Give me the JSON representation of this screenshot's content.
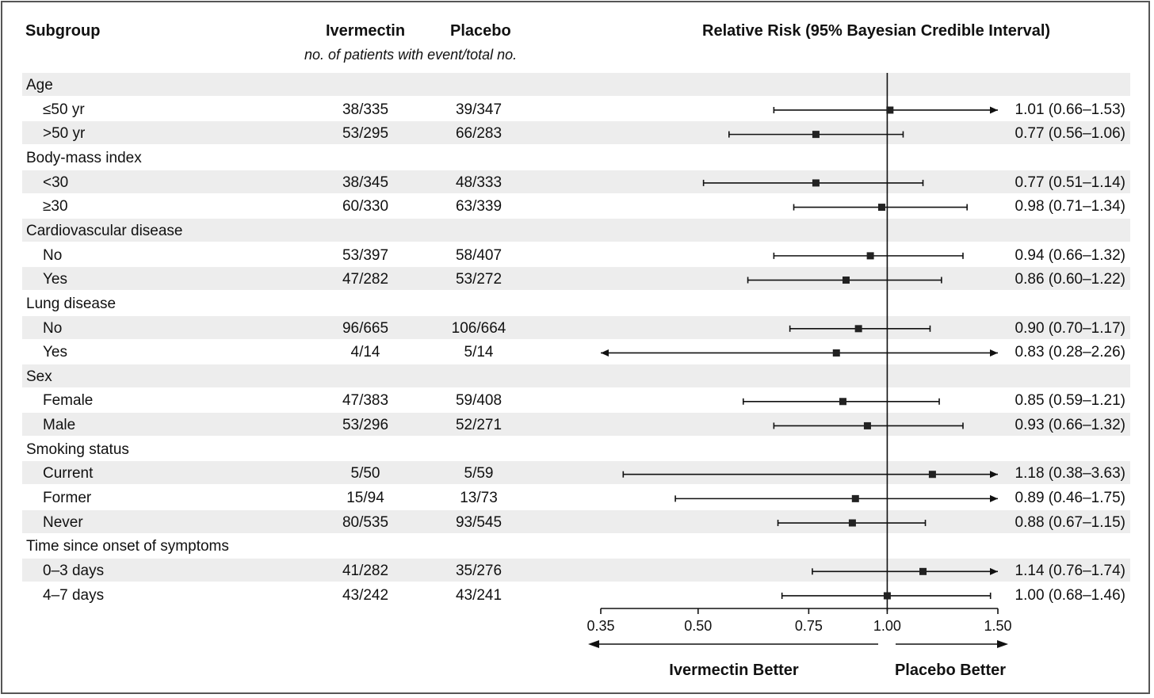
{
  "headers": {
    "subgroup": "Subgroup",
    "ivermectin": "Ivermectin",
    "placebo": "Placebo",
    "subheader": "no. of patients with event/total no.",
    "relative_risk": "Relative Risk (95% Bayesian Credible Interval)"
  },
  "chart_data": {
    "type": "forest",
    "xscale": "log",
    "xlim": [
      0.35,
      1.5
    ],
    "reference_line": 1.0,
    "xticks": [
      {
        "value": 0.35,
        "label": "0.35"
      },
      {
        "value": 0.5,
        "label": "0.50"
      },
      {
        "value": 0.75,
        "label": "0.75"
      },
      {
        "value": 1.0,
        "label": "1.00"
      },
      {
        "value": 1.5,
        "label": "1.50"
      }
    ],
    "direction_labels": {
      "left": "Ivermectin Better",
      "right": "Placebo Better"
    },
    "rows": [
      {
        "kind": "group",
        "label": "Age"
      },
      {
        "kind": "item",
        "label": "≤50 yr",
        "ivermectin": "38/335",
        "placebo": "39/347",
        "rr": 1.01,
        "lo": 0.66,
        "hi": 1.53,
        "rr_text": "1.01 (0.66–1.53)"
      },
      {
        "kind": "item",
        "label": ">50 yr",
        "ivermectin": "53/295",
        "placebo": "66/283",
        "rr": 0.77,
        "lo": 0.56,
        "hi": 1.06,
        "rr_text": "0.77 (0.56–1.06)"
      },
      {
        "kind": "group",
        "label": "Body-mass index"
      },
      {
        "kind": "item",
        "label": "<30",
        "ivermectin": "38/345",
        "placebo": "48/333",
        "rr": 0.77,
        "lo": 0.51,
        "hi": 1.14,
        "rr_text": "0.77 (0.51–1.14)"
      },
      {
        "kind": "item",
        "label": "≥30",
        "ivermectin": "60/330",
        "placebo": "63/339",
        "rr": 0.98,
        "lo": 0.71,
        "hi": 1.34,
        "rr_text": "0.98 (0.71–1.34)"
      },
      {
        "kind": "group",
        "label": "Cardiovascular disease"
      },
      {
        "kind": "item",
        "label": "No",
        "ivermectin": "53/397",
        "placebo": "58/407",
        "rr": 0.94,
        "lo": 0.66,
        "hi": 1.32,
        "rr_text": "0.94 (0.66–1.32)"
      },
      {
        "kind": "item",
        "label": "Yes",
        "ivermectin": "47/282",
        "placebo": "53/272",
        "rr": 0.86,
        "lo": 0.6,
        "hi": 1.22,
        "rr_text": "0.86 (0.60–1.22)"
      },
      {
        "kind": "group",
        "label": "Lung disease"
      },
      {
        "kind": "item",
        "label": "No",
        "ivermectin": "96/665",
        "placebo": "106/664",
        "rr": 0.9,
        "lo": 0.7,
        "hi": 1.17,
        "rr_text": "0.90 (0.70–1.17)"
      },
      {
        "kind": "item",
        "label": "Yes",
        "ivermectin": "4/14",
        "placebo": "5/14",
        "rr": 0.83,
        "lo": 0.28,
        "hi": 2.26,
        "rr_text": "0.83 (0.28–2.26)"
      },
      {
        "kind": "group",
        "label": "Sex"
      },
      {
        "kind": "item",
        "label": "Female",
        "ivermectin": "47/383",
        "placebo": "59/408",
        "rr": 0.85,
        "lo": 0.59,
        "hi": 1.21,
        "rr_text": "0.85 (0.59–1.21)"
      },
      {
        "kind": "item",
        "label": "Male",
        "ivermectin": "53/296",
        "placebo": "52/271",
        "rr": 0.93,
        "lo": 0.66,
        "hi": 1.32,
        "rr_text": "0.93 (0.66–1.32)"
      },
      {
        "kind": "group",
        "label": "Smoking status"
      },
      {
        "kind": "item",
        "label": "Current",
        "ivermectin": "5/50",
        "placebo": "5/59",
        "rr": 1.18,
        "lo": 0.38,
        "hi": 3.63,
        "rr_text": "1.18 (0.38–3.63)"
      },
      {
        "kind": "item",
        "label": "Former",
        "ivermectin": "15/94",
        "placebo": "13/73",
        "rr": 0.89,
        "lo": 0.46,
        "hi": 1.75,
        "rr_text": "0.89 (0.46–1.75)"
      },
      {
        "kind": "item",
        "label": "Never",
        "ivermectin": "80/535",
        "placebo": "93/545",
        "rr": 0.88,
        "lo": 0.67,
        "hi": 1.15,
        "rr_text": "0.88 (0.67–1.15)"
      },
      {
        "kind": "group",
        "label": "Time since onset of symptoms"
      },
      {
        "kind": "item",
        "label": "0–3 days",
        "ivermectin": "41/282",
        "placebo": "35/276",
        "rr": 1.14,
        "lo": 0.76,
        "hi": 1.74,
        "rr_text": "1.14 (0.76–1.74)"
      },
      {
        "kind": "item",
        "label": "4–7 days",
        "ivermectin": "43/242",
        "placebo": "43/241",
        "rr": 1.0,
        "lo": 0.68,
        "hi": 1.46,
        "rr_text": "1.00 (0.68–1.46)"
      }
    ]
  }
}
